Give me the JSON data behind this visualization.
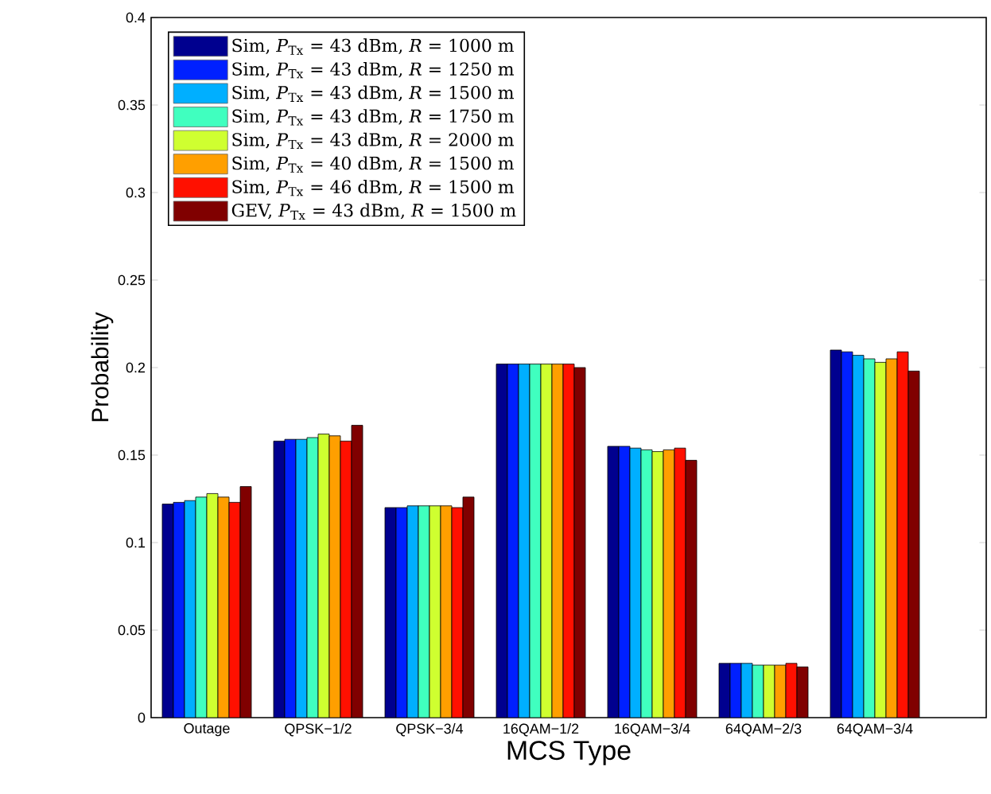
{
  "chart_data": {
    "type": "bar",
    "xlabel": "MCS Type",
    "ylabel": "Probability",
    "categories": [
      "Outage",
      "QPSK−1/2",
      "QPSK−3/4",
      "16QAM−1/2",
      "16QAM−3/4",
      "64QAM−2/3",
      "64QAM−3/4"
    ],
    "series": [
      {
        "name": "Sim, *P*$_{Tx}$ = 43 dBm, *R* = 1000 m",
        "color": "#00008f",
        "values": [
          0.122,
          0.158,
          0.12,
          0.202,
          0.155,
          0.031,
          0.21
        ]
      },
      {
        "name": "Sim, *P*$_{Tx}$ = 43 dBm, *R* = 1250 m",
        "color": "#0020ff",
        "values": [
          0.123,
          0.159,
          0.12,
          0.202,
          0.155,
          0.031,
          0.209
        ]
      },
      {
        "name": "Sim, *P*$_{Tx}$ = 43 dBm, *R* = 1500 m",
        "color": "#00afff",
        "values": [
          0.124,
          0.159,
          0.121,
          0.202,
          0.154,
          0.031,
          0.207
        ]
      },
      {
        "name": "Sim, *P*$_{Tx}$ = 43 dBm, *R* = 1750 m",
        "color": "#40ffbf",
        "values": [
          0.126,
          0.16,
          0.121,
          0.202,
          0.153,
          0.03,
          0.205
        ]
      },
      {
        "name": "Sim, *P*$_{Tx}$ = 43 dBm, *R* = 2000 m",
        "color": "#cfff30",
        "values": [
          0.128,
          0.162,
          0.121,
          0.202,
          0.152,
          0.03,
          0.203
        ]
      },
      {
        "name": "Sim, *P*$_{Tx}$ = 40 dBm, *R* = 1500 m",
        "color": "#ff9f00",
        "values": [
          0.126,
          0.161,
          0.121,
          0.202,
          0.153,
          0.03,
          0.205
        ]
      },
      {
        "name": "Sim, *P*$_{Tx}$ = 46 dBm, *R* = 1500 m",
        "color": "#ff1000",
        "values": [
          0.123,
          0.158,
          0.12,
          0.202,
          0.154,
          0.031,
          0.209
        ]
      },
      {
        "name": "GEV, *P*$_{Tx}$ = 43 dBm, *R* = 1500 m",
        "color": "#800000",
        "values": [
          0.132,
          0.167,
          0.126,
          0.2,
          0.147,
          0.029,
          0.198
        ]
      }
    ],
    "ylim": [
      0,
      0.4
    ],
    "yticks": [
      0,
      0.05,
      0.1,
      0.15,
      0.2,
      0.25,
      0.3,
      0.35,
      0.4
    ],
    "legend": "top left",
    "grid": false
  }
}
